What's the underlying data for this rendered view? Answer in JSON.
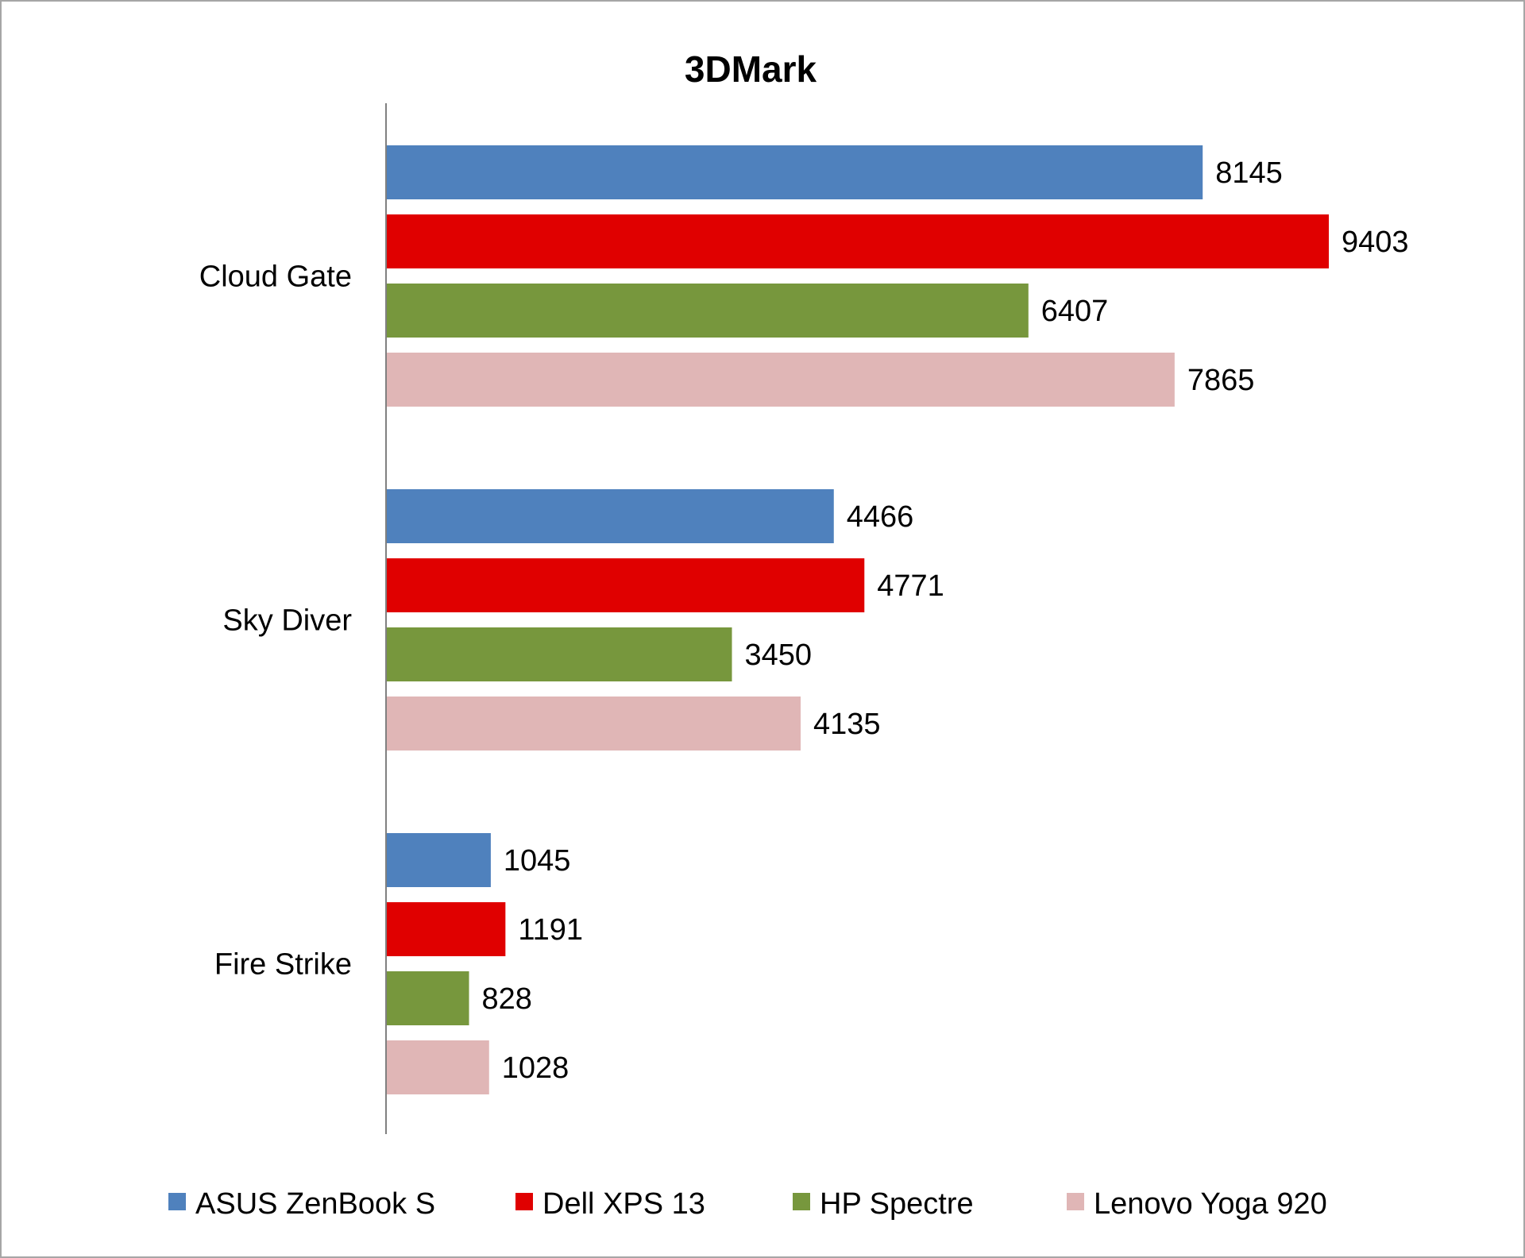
{
  "chart_data": {
    "type": "bar",
    "orientation": "horizontal",
    "title": "3DMark",
    "xlabel": "",
    "ylabel": "",
    "xlim": [
      0,
      10000
    ],
    "grid": false,
    "legend_position": "bottom",
    "categories": [
      "Cloud Gate",
      "Sky Diver",
      "Fire Strike"
    ],
    "series": [
      {
        "name": "ASUS ZenBook S",
        "color": "#4f81bd",
        "values": [
          8145,
          4466,
          1045
        ]
      },
      {
        "name": "Dell XPS 13",
        "color": "#e00000",
        "values": [
          9403,
          4771,
          1191
        ]
      },
      {
        "name": "HP Spectre",
        "color": "#77973d",
        "values": [
          6407,
          3450,
          828
        ]
      },
      {
        "name": "Lenovo Yoga 920",
        "color": "#e0b6b6",
        "values": [
          7865,
          4135,
          1028
        ]
      }
    ]
  }
}
